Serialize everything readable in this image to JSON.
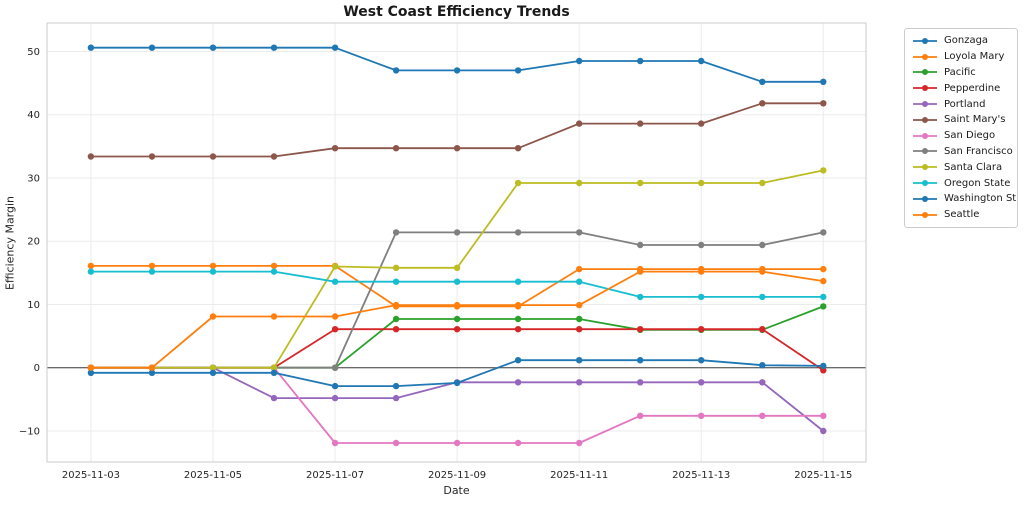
{
  "title": "West Coast Efficiency Trends",
  "axes": {
    "x_label": "Date",
    "y_label": "Efficiency Margin",
    "x_tick_labels": [
      "2025-11-03",
      "2025-11-05",
      "2025-11-07",
      "2025-11-09",
      "2025-11-11",
      "2025-11-13",
      "2025-11-15"
    ],
    "y_tick_labels": [
      "−10",
      "0",
      "10",
      "20",
      "30",
      "40",
      "50"
    ]
  },
  "chart_data": {
    "type": "line",
    "title": "West Coast Efficiency Trends",
    "xlabel": "Date",
    "ylabel": "Efficiency Margin",
    "x": [
      "2025-11-03",
      "2025-11-04",
      "2025-11-05",
      "2025-11-06",
      "2025-11-07",
      "2025-11-08",
      "2025-11-09",
      "2025-11-10",
      "2025-11-11",
      "2025-11-12",
      "2025-11-13",
      "2025-11-14",
      "2025-11-15"
    ],
    "x_major_ticks": [
      0,
      2,
      4,
      6,
      8,
      10,
      12
    ],
    "y_ticks": [
      -10,
      0,
      10,
      20,
      30,
      40,
      50
    ],
    "xlim": [
      -0.72,
      12.7
    ],
    "ylim": [
      -14.9,
      54.5
    ],
    "grid": true,
    "zero_line": true,
    "zero_line_color": "#3d3d3d",
    "grid_color": "#ebebeb",
    "spine_color": "#cbcbcb",
    "marker": "circle",
    "legend_position": "outside-right",
    "series": [
      {
        "name": "Gonzaga",
        "color": "#1f77b4",
        "values": [
          50.6,
          50.6,
          50.6,
          50.6,
          50.6,
          47.0,
          47.0,
          47.0,
          48.5,
          48.5,
          48.5,
          45.2,
          45.2
        ]
      },
      {
        "name": "Loyola Mary",
        "color": "#ff7f0e",
        "values": [
          16.1,
          16.1,
          16.1,
          16.1,
          16.1,
          9.7,
          9.7,
          9.7,
          15.6,
          15.6,
          15.6,
          15.6,
          15.6
        ]
      },
      {
        "name": "Pacific",
        "color": "#2ca02c",
        "values": [
          0.0,
          0.0,
          0.0,
          0.0,
          0.0,
          7.7,
          7.7,
          7.7,
          7.7,
          6.0,
          6.0,
          6.0,
          9.7
        ]
      },
      {
        "name": "Pepperdine",
        "color": "#d62728",
        "values": [
          0.0,
          0.0,
          0.0,
          0.0,
          6.1,
          6.1,
          6.1,
          6.1,
          6.1,
          6.1,
          6.1,
          6.1,
          -0.4
        ]
      },
      {
        "name": "Portland",
        "color": "#9467bd",
        "values": [
          0.0,
          0.0,
          0.0,
          -4.8,
          -4.8,
          -4.8,
          -2.3,
          -2.3,
          -2.3,
          -2.3,
          -2.3,
          -2.3,
          -10.0
        ]
      },
      {
        "name": "Saint Mary's",
        "color": "#8c564b",
        "values": [
          33.4,
          33.4,
          33.4,
          33.4,
          34.7,
          34.7,
          34.7,
          34.7,
          38.6,
          38.6,
          38.6,
          41.8,
          41.8
        ]
      },
      {
        "name": "San Diego",
        "color": "#e377c2",
        "values": [
          0.0,
          0.0,
          0.0,
          0.0,
          -11.9,
          -11.9,
          -11.9,
          -11.9,
          -11.9,
          -7.6,
          -7.6,
          -7.6,
          -7.6
        ]
      },
      {
        "name": "San Francisco",
        "color": "#7f7f7f",
        "values": [
          0.0,
          0.0,
          0.0,
          0.0,
          0.0,
          21.4,
          21.4,
          21.4,
          21.4,
          19.4,
          19.4,
          19.4,
          21.4
        ]
      },
      {
        "name": "Santa Clara",
        "color": "#bcbd22",
        "values": [
          0.0,
          0.0,
          0.0,
          0.0,
          16.0,
          15.8,
          15.8,
          29.2,
          29.2,
          29.2,
          29.2,
          29.2,
          31.2
        ]
      },
      {
        "name": "Oregon State",
        "color": "#17becf",
        "values": [
          15.2,
          15.2,
          15.2,
          15.2,
          13.6,
          13.6,
          13.6,
          13.6,
          13.6,
          11.2,
          11.2,
          11.2,
          11.2
        ]
      },
      {
        "name": "Washington St",
        "color": "#1f77b4",
        "values": [
          -0.8,
          -0.8,
          -0.8,
          -0.8,
          -2.9,
          -2.9,
          -2.4,
          1.2,
          1.2,
          1.2,
          1.2,
          0.4,
          0.3
        ]
      },
      {
        "name": "Seattle",
        "color": "#ff7f0e",
        "values": [
          0.0,
          0.0,
          8.1,
          8.1,
          8.1,
          9.9,
          9.9,
          9.9,
          9.9,
          15.2,
          15.2,
          15.2,
          13.7
        ]
      }
    ]
  }
}
